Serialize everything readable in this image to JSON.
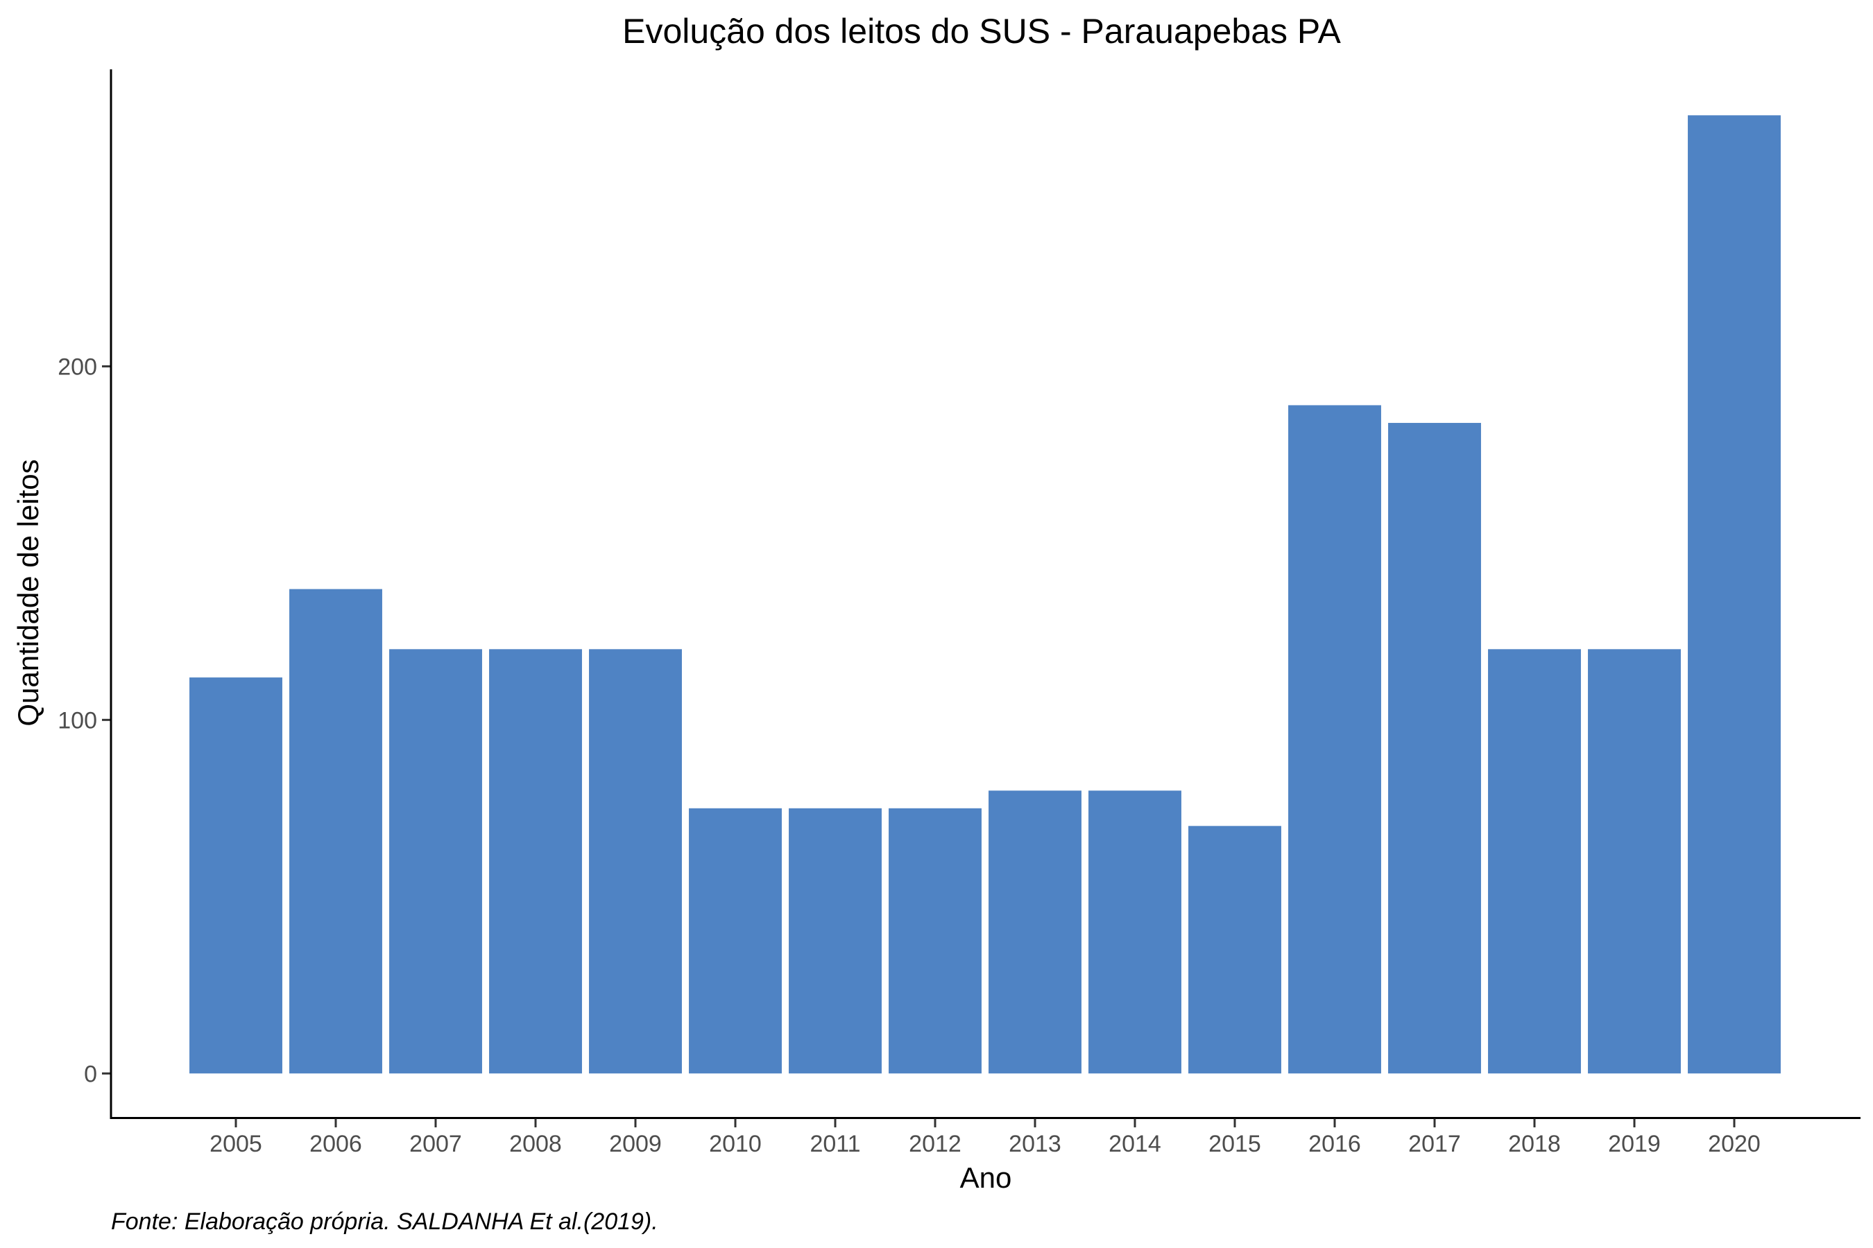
{
  "chart_data": {
    "type": "bar",
    "title": "Evolução dos leitos do SUS -  Parauapebas PA",
    "xlabel": "Ano",
    "ylabel": "Quantidade de leitos",
    "categories": [
      "2005",
      "2006",
      "2007",
      "2008",
      "2009",
      "2010",
      "2011",
      "2012",
      "2013",
      "2014",
      "2015",
      "2016",
      "2017",
      "2018",
      "2019",
      "2020"
    ],
    "values": [
      112,
      137,
      120,
      120,
      120,
      75,
      75,
      75,
      80,
      80,
      70,
      189,
      184,
      120,
      120,
      271
    ],
    "yticks": [
      0,
      100,
      200
    ],
    "ylim": [
      -12.5,
      284
    ],
    "grid": false,
    "legend": "none",
    "colors": {
      "bar": "#4F83C4",
      "axis": "#000000",
      "tick_text": "#4d4d4d"
    },
    "caption": "Fonte: Elaboração própria. SALDANHA Et al.(2019)."
  }
}
